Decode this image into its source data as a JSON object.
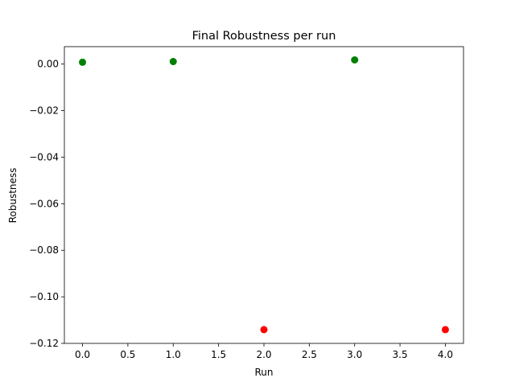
{
  "chart_data": {
    "type": "scatter",
    "title": "Final Robustness per run",
    "xlabel": "Run",
    "ylabel": "Robustness",
    "xlim": [
      -0.2,
      4.2
    ],
    "ylim": [
      -0.12,
      0.0075
    ],
    "xticks": [
      0.0,
      0.5,
      1.0,
      1.5,
      2.0,
      2.5,
      3.0,
      3.5,
      4.0
    ],
    "xtick_labels": [
      "0.0",
      "0.5",
      "1.0",
      "1.5",
      "2.0",
      "2.5",
      "3.0",
      "3.5",
      "4.0"
    ],
    "yticks": [
      0.0,
      -0.02,
      -0.04,
      -0.06,
      -0.08,
      -0.1,
      -0.12
    ],
    "ytick_labels": [
      "0.00",
      "−0.02",
      "−0.04",
      "−0.06",
      "−0.08",
      "−0.10",
      "−0.12"
    ],
    "grid": false,
    "points": [
      {
        "x": 0,
        "y": 0.0008,
        "color": "#008000"
      },
      {
        "x": 1,
        "y": 0.0011,
        "color": "#008000"
      },
      {
        "x": 2,
        "y": -0.1141,
        "color": "#ff0000"
      },
      {
        "x": 3,
        "y": 0.0018,
        "color": "#008000"
      },
      {
        "x": 4,
        "y": -0.1141,
        "color": "#ff0000"
      }
    ]
  }
}
